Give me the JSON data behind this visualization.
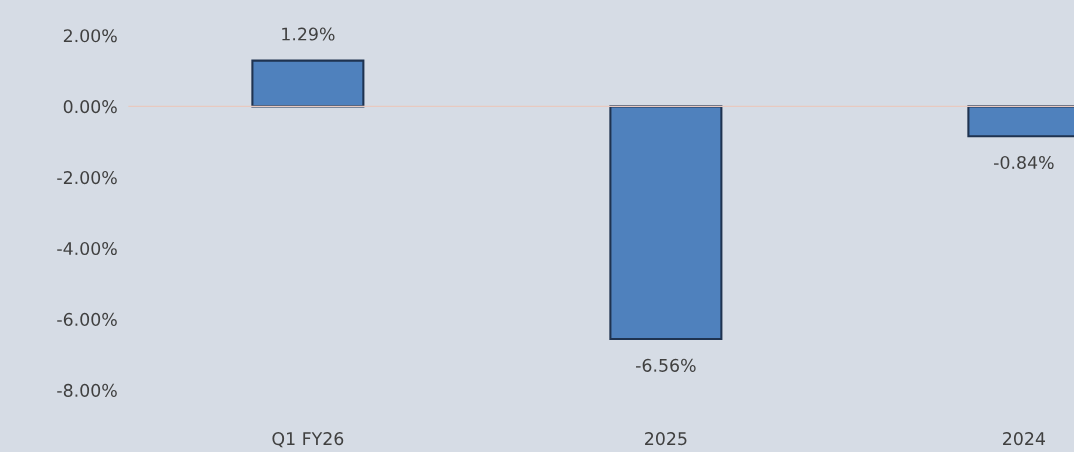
{
  "chart_data": {
    "type": "bar",
    "categories": [
      "Q1 FY26",
      "2025",
      "2024"
    ],
    "values": [
      1.29,
      -6.56,
      -0.84
    ],
    "value_labels": [
      "1.29%",
      "-6.56%",
      "-0.84%"
    ],
    "color": "#4f81bd",
    "ylim": [
      -8,
      3.0
    ],
    "yticks": [
      {
        "value": 2,
        "label": "2.00%"
      },
      {
        "value": 0,
        "label": "0.00%"
      },
      {
        "value": -2,
        "label": "-2.00%"
      },
      {
        "value": -4,
        "label": "-4.00%"
      },
      {
        "value": -6,
        "label": "-6.00%"
      },
      {
        "value": -8,
        "label": "-8.00%"
      }
    ],
    "legend": false
  }
}
